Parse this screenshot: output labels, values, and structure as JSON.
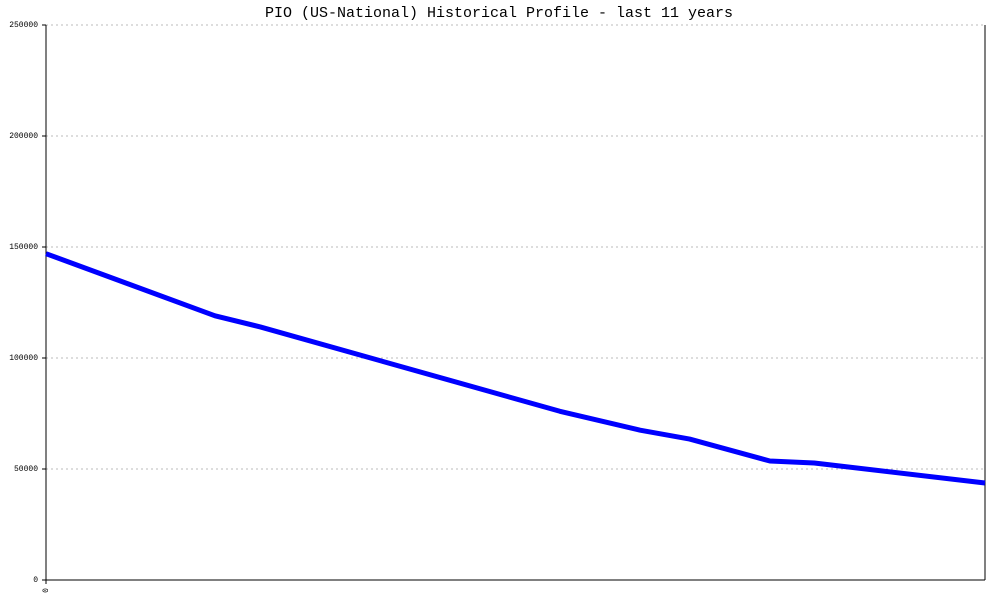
{
  "chart_data": {
    "type": "line",
    "title": "PIO (US-National) Historical Profile - last 11 years",
    "x": [
      0,
      1.98,
      2.51,
      6.02,
      6.96,
      7.54,
      8.48,
      9.0,
      11
    ],
    "series": [
      {
        "color": "#0000ff",
        "values": [
          147000,
          119000,
          114000,
          76000,
          67500,
          63500,
          53600,
          52700,
          43700
        ]
      }
    ],
    "xlim": [
      0,
      11
    ],
    "xticks": [
      0
    ],
    "ylim": [
      0,
      250000
    ],
    "yticks": [
      0,
      50000,
      100000,
      150000,
      200000,
      250000
    ],
    "grid": true
  }
}
